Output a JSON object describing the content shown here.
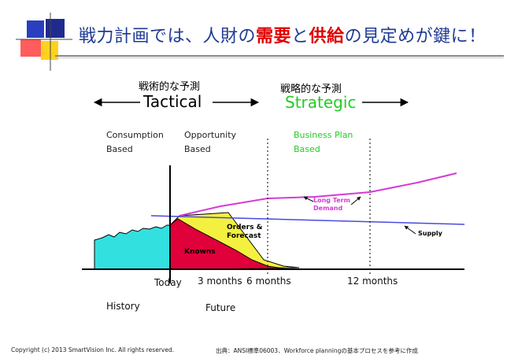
{
  "title": {
    "part1": "戦力計画では、人財の",
    "highlight1": "需要",
    "connector": "と",
    "highlight2": "供給",
    "part2": "の見定めが鍵に！"
  },
  "header": {
    "tactical_jp": "戦術的な予測",
    "strategic_jp": "戦略的な予測",
    "tactical": "Tactical",
    "strategic": "Strategic"
  },
  "columns": {
    "consumption_line1": "Consumption",
    "consumption_line2": "Based",
    "opportunity_line1": "Opportunity",
    "opportunity_line2": "Based",
    "business_line1": "Business Plan",
    "business_line2": "Based"
  },
  "chart": {
    "orders_line1": "Orders &",
    "orders_line2": "Forecast",
    "knowns": "Knowns",
    "long_term_line1": "Long Term",
    "long_term_line2": "Demand",
    "supply": "Supply"
  },
  "axis": {
    "today": "Today",
    "three_months": "3 months",
    "six_months": "6 months",
    "twelve_months": "12 months",
    "history": "History",
    "future": "Future"
  },
  "footer": {
    "copyright": "Copyright (c) 2013 SmartVision Inc. All rights reserved.",
    "source": "出典：ANSI標準06003、Workforce planningの基本プロセスを参考に作成"
  },
  "colors": {
    "title": "#1f3a93",
    "accent_red": "#e00000",
    "strategic_green": "#22cc22",
    "history_cyan": "#33e0e0",
    "knowns_red": "#e0003a",
    "forecast_yellow": "#f4f040",
    "demand_magenta": "#d63ad6",
    "supply_blue": "#4a4ae0"
  }
}
